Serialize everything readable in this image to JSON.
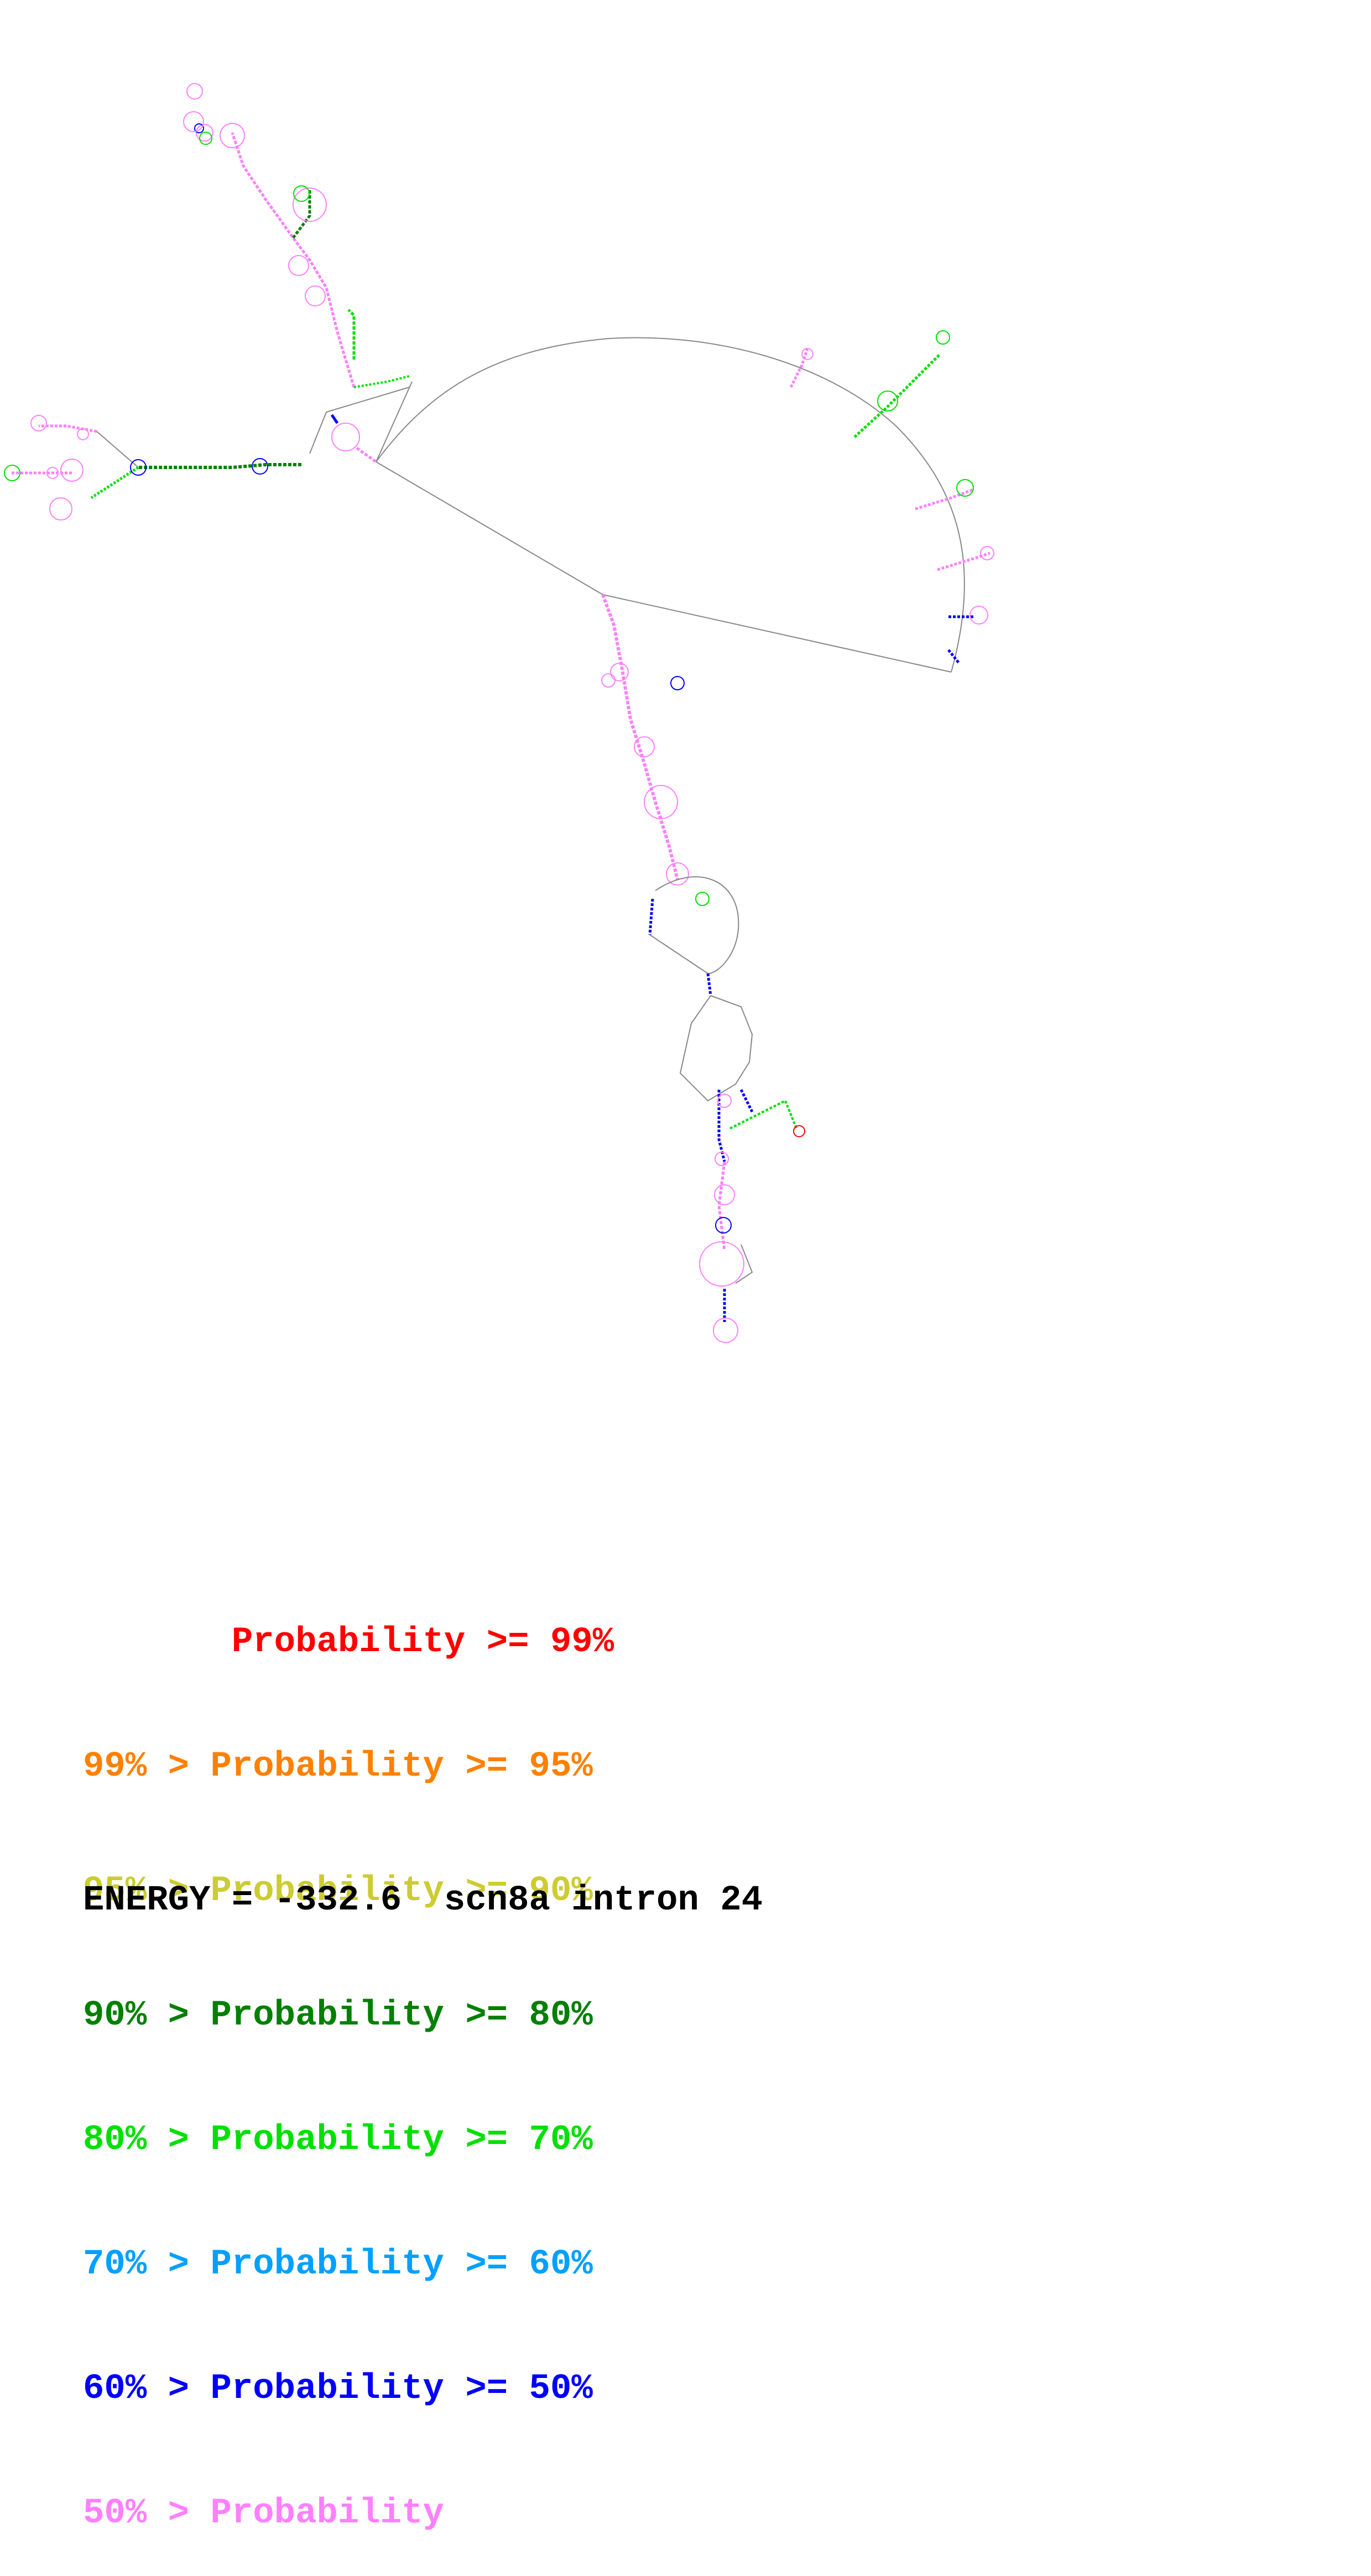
{
  "legend": {
    "rows": [
      {
        "text": "       Probability >= 99%",
        "color": "#ff0000"
      },
      {
        "text": "99% > Probability >= 95%",
        "color": "#ff8000"
      },
      {
        "text": "95% > Probability >= 90%",
        "color": "#cccc33"
      },
      {
        "text": "90% > Probability >= 80%",
        "color": "#008000"
      },
      {
        "text": "80% > Probability >= 70%",
        "color": "#00e000"
      },
      {
        "text": "70% > Probability >= 60%",
        "color": "#00a0ff"
      },
      {
        "text": "60% > Probability >= 50%",
        "color": "#0000ff"
      },
      {
        "text": "50% > Probability",
        "color": "#ff80ff"
      }
    ]
  },
  "footer": {
    "energy": "ENERGY = -332.6  scn8a intron 24"
  },
  "colors": {
    "backbone": "#777777",
    "pink": "#ff80ff",
    "blue": "#0000ff",
    "lightblue": "#00a0ff",
    "green": "#00e000",
    "darkgreen": "#008000",
    "yellow": "#cccc33",
    "orange": "#ff8000",
    "red": "#ff0000"
  }
}
